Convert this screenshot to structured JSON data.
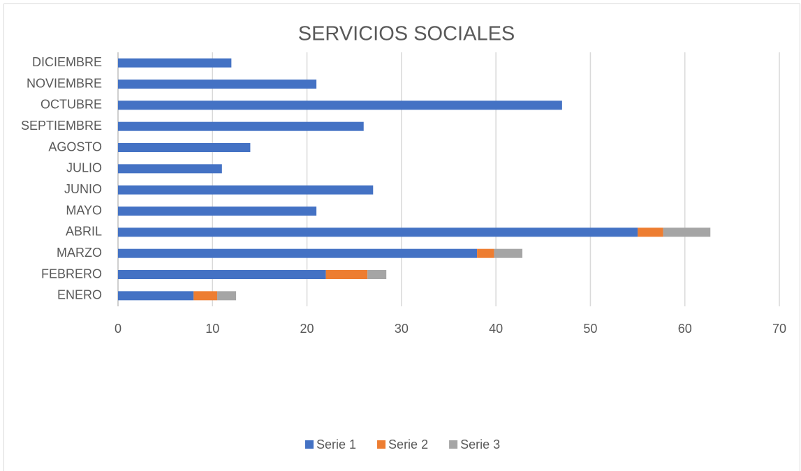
{
  "chart_data": {
    "type": "stacked_barh",
    "title": "SERVICIOS SOCIALES",
    "categories": [
      "ENERO",
      "FEBRERO",
      "MARZO",
      "ABRIL",
      "MAYO",
      "JUNIO",
      "JULIO",
      "AGOSTO",
      "SEPTIEMBRE",
      "OCTUBRE",
      "NOVIEMBRE",
      "DICIEMBRE"
    ],
    "series": [
      {
        "name": "Serie 1",
        "color": "#4472c4",
        "values": [
          8,
          22,
          38,
          55,
          21,
          27,
          11,
          14,
          26,
          47,
          21,
          12
        ]
      },
      {
        "name": "Serie 2",
        "color": "#ed7d31",
        "values": [
          2.5,
          4.4,
          1.8,
          2.7,
          null,
          null,
          null,
          null,
          null,
          null,
          null,
          null
        ]
      },
      {
        "name": "Serie 3",
        "color": "#a5a5a5",
        "values": [
          2,
          2,
          3,
          5,
          null,
          null,
          null,
          null,
          null,
          null,
          null,
          null
        ]
      }
    ],
    "xlim": [
      0,
      70
    ],
    "xticks": [
      0,
      10,
      20,
      30,
      40,
      50,
      60,
      70
    ],
    "grid": true,
    "legend": "bottom"
  }
}
